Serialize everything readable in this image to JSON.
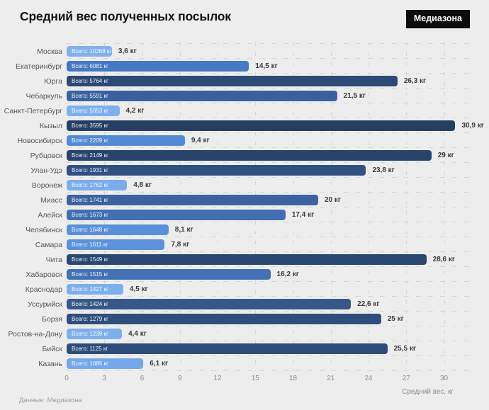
{
  "header": {
    "title": "Средний вес полученных посылок",
    "brand": "Медиазона"
  },
  "footer": {
    "source": "Данные: Медиазона"
  },
  "chart_data": {
    "type": "bar",
    "orientation": "horizontal",
    "title": "Средний вес полученных посылок",
    "xlabel": "Средний вес, кг",
    "xlim": [
      0,
      32
    ],
    "x_ticks": [
      0,
      3,
      6,
      9,
      12,
      15,
      18,
      21,
      24,
      27,
      30
    ],
    "grid": "dashed",
    "legend": "none",
    "bar_label_prefix": "Всего:",
    "rows": [
      {
        "city": "Москва",
        "total": 10268,
        "total_label": "Всего: 10268 кг",
        "value": 3.6,
        "value_label": "3,6 кг",
        "color": "#80b1ed"
      },
      {
        "city": "Екатеринбург",
        "total": 6081,
        "total_label": "Всего: 6081 кг",
        "value": 14.5,
        "value_label": "14,5 кг",
        "color": "#4679c4"
      },
      {
        "city": "Юрга",
        "total": 5764,
        "total_label": "Всего: 5764 кг",
        "value": 26.3,
        "value_label": "26,3 кг",
        "color": "#2c4a75"
      },
      {
        "city": "Чебаркуль",
        "total": 5591,
        "total_label": "Всего: 5591 кг",
        "value": 21.5,
        "value_label": "21,5 кг",
        "color": "#39619d"
      },
      {
        "city": "Санкт-Петербург",
        "total": 5053,
        "total_label": "Всего: 5053 кг",
        "value": 4.2,
        "value_label": "4,2 кг",
        "color": "#7db0ec"
      },
      {
        "city": "Кызыл",
        "total": 3595,
        "total_label": "Всего: 3595 кг",
        "value": 30.9,
        "value_label": "30,9 кг",
        "color": "#253f64"
      },
      {
        "city": "Новосибирск",
        "total": 2209,
        "total_label": "Всего: 2209 кг",
        "value": 9.4,
        "value_label": "9,4 кг",
        "color": "#538ad5"
      },
      {
        "city": "Рубцовск",
        "total": 2149,
        "total_label": "Всего: 2149 кг",
        "value": 29,
        "value_label": "29 кг",
        "color": "#28446c"
      },
      {
        "city": "Улан-Удэ",
        "total": 1931,
        "total_label": "Всего: 1931 кг",
        "value": 23.8,
        "value_label": "23,8 кг",
        "color": "#2f5080"
      },
      {
        "city": "Воронеж",
        "total": 1762,
        "total_label": "Всего: 1762 кг",
        "value": 4.8,
        "value_label": "4,8 кг",
        "color": "#7aadeb"
      },
      {
        "city": "Миасс",
        "total": 1741,
        "total_label": "Всего: 1741 кг",
        "value": 20,
        "value_label": "20 кг",
        "color": "#3b639f"
      },
      {
        "city": "Алейск",
        "total": 1673,
        "total_label": "Всего: 1673 кг",
        "value": 17.4,
        "value_label": "17,4 кг",
        "color": "#416fb2"
      },
      {
        "city": "Челябинск",
        "total": 1648,
        "total_label": "Всего: 1648 кг",
        "value": 8.1,
        "value_label": "8,1 кг",
        "color": "#5a90da"
      },
      {
        "city": "Самара",
        "total": 1611,
        "total_label": "Всего: 1611 кг",
        "value": 7.8,
        "value_label": "7,8 кг",
        "color": "#5c92db"
      },
      {
        "city": "Чита",
        "total": 1549,
        "total_label": "Всего: 1549 кг",
        "value": 28.6,
        "value_label": "28,6 кг",
        "color": "#294770"
      },
      {
        "city": "Хабаровск",
        "total": 1515,
        "total_label": "Всего: 1515 кг",
        "value": 16.2,
        "value_label": "16,2 кг",
        "color": "#4271b6"
      },
      {
        "city": "Краснодар",
        "total": 1427,
        "total_label": "Всего: 1427 кг",
        "value": 4.5,
        "value_label": "4,5 кг",
        "color": "#7cafec"
      },
      {
        "city": "Уссурийск",
        "total": 1424,
        "total_label": "Всего: 1424 кг",
        "value": 22.6,
        "value_label": "22,6 кг",
        "color": "#355889"
      },
      {
        "city": "Борзя",
        "total": 1279,
        "total_label": "Всего: 1279 кг",
        "value": 25,
        "value_label": "25 кг",
        "color": "#2e4e7c"
      },
      {
        "city": "Ростов-на-Дону",
        "total": 1239,
        "total_label": "Всего: 1239 кг",
        "value": 4.4,
        "value_label": "4,4 кг",
        "color": "#7dafec"
      },
      {
        "city": "Бийск",
        "total": 1125,
        "total_label": "Всего: 1125 кг",
        "value": 25.5,
        "value_label": "25,5 кг",
        "color": "#2d4c79"
      },
      {
        "city": "Казань",
        "total": 1085,
        "total_label": "Всего: 1085 кг",
        "value": 6.1,
        "value_label": "6,1 кг",
        "color": "#74a8e9"
      }
    ]
  },
  "colors": {
    "background": "#ededed",
    "badge_bg": "#0d0d0d",
    "badge_text": "#ffffff",
    "grid": "#d6d6d6",
    "axis_text": "#8d8d8d",
    "value_text": "#3a3a3a",
    "city_text": "#565656"
  }
}
